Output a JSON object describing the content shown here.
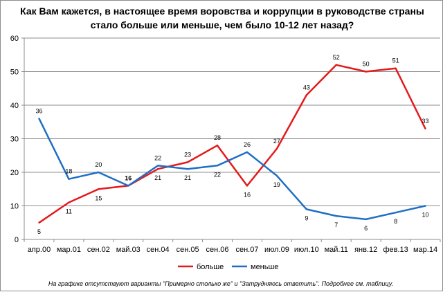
{
  "chart_data": {
    "type": "line",
    "title_lines": [
      "Как Вам кажется, в настоящее время воровства и коррупции в руководстве страны",
      "стало больше или меньше, чем было 10-12 лет назад?"
    ],
    "categories": [
      "апр.00",
      "мар.01",
      "сен.02",
      "май.03",
      "сен.04",
      "сен.05",
      "сен.06",
      "сен.07",
      "июл.09",
      "июл.10",
      "май.11",
      "янв.12",
      "фев.13",
      "мар.14"
    ],
    "y_ticks": [
      "0",
      "10",
      "20",
      "30",
      "40",
      "50",
      "60"
    ],
    "ylim": [
      0,
      60
    ],
    "grid": true,
    "legend_position": "bottom",
    "series": [
      {
        "name": "больше",
        "color": "#e41a1c",
        "values": [
          5,
          11,
          15,
          16,
          21,
          23,
          28,
          16,
          27,
          43,
          52,
          50,
          51,
          33
        ],
        "labels": [
          "5",
          "11",
          "15",
          "16",
          "21",
          "23",
          "28",
          "16",
          "27",
          "43",
          "52",
          "50",
          "51",
          "33"
        ]
      },
      {
        "name": "меньше",
        "color": "#1f6fc5",
        "values": [
          36,
          18,
          20,
          16,
          22,
          21,
          22,
          26,
          19,
          9,
          7,
          6,
          8,
          10
        ],
        "labels": [
          "36",
          "18",
          "20",
          "16",
          "22",
          "21",
          "22",
          "26",
          "19",
          "9",
          "7",
          "6",
          "8",
          "10"
        ]
      }
    ],
    "footnote": "На графике отсутствуют варианты \"Примерно  столько же\" и \"Затрудняюсь ответить\". Подробнее см. таблицу."
  }
}
